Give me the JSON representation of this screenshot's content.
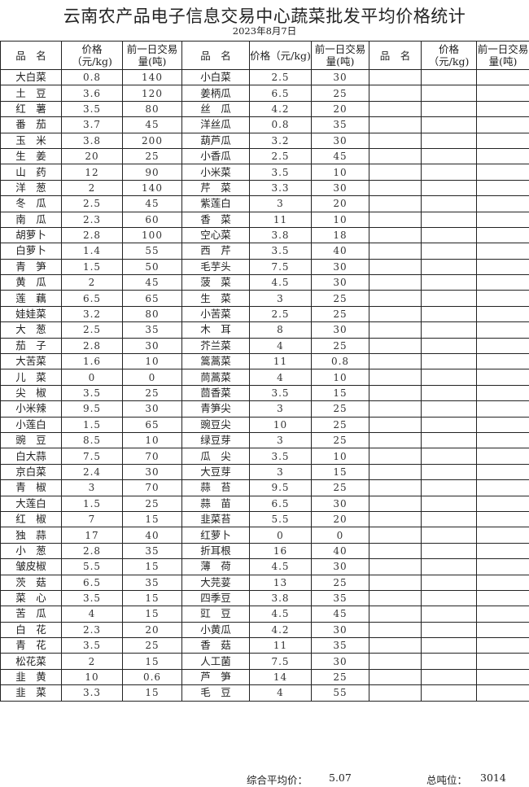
{
  "title": "云南农产品电子信息交易中心蔬菜批发平均价格统计",
  "date": "2023年8月7日",
  "headers": {
    "name": "品　名",
    "price": "价格（元/kg)",
    "volume": "前一日交易量(吨)"
  },
  "left": [
    [
      "大白菜",
      "0.8",
      "140"
    ],
    [
      "土　豆",
      "3.6",
      "120"
    ],
    [
      "红　薯",
      "3.5",
      "80"
    ],
    [
      "番　茄",
      "3.7",
      "45"
    ],
    [
      "玉　米",
      "3.8",
      "200"
    ],
    [
      "生　姜",
      "20",
      "25"
    ],
    [
      "山　药",
      "12",
      "90"
    ],
    [
      "洋　葱",
      "2",
      "140"
    ],
    [
      "冬　瓜",
      "2.5",
      "45"
    ],
    [
      "南　瓜",
      "2.3",
      "60"
    ],
    [
      "胡萝卜",
      "2.8",
      "100"
    ],
    [
      "白萝卜",
      "1.4",
      "55"
    ],
    [
      "青　笋",
      "1.5",
      "50"
    ],
    [
      "黄　瓜",
      "2",
      "45"
    ],
    [
      "莲　藕",
      "6.5",
      "65"
    ],
    [
      "娃娃菜",
      "3.2",
      "80"
    ],
    [
      "大　葱",
      "2.5",
      "35"
    ],
    [
      "茄　子",
      "2.8",
      "30"
    ],
    [
      "大苦菜",
      "1.6",
      "10"
    ],
    [
      "儿　菜",
      "0",
      "0"
    ],
    [
      "尖　椒",
      "3.5",
      "25"
    ],
    [
      "小米辣",
      "9.5",
      "30"
    ],
    [
      "小莲白",
      "1.5",
      "65"
    ],
    [
      "豌　豆",
      "8.5",
      "10"
    ],
    [
      "白大蒜",
      "7.5",
      "70"
    ],
    [
      "京白菜",
      "2.4",
      "30"
    ],
    [
      "青　椒",
      "3",
      "70"
    ],
    [
      "大莲白",
      "1.5",
      "25"
    ],
    [
      "红　椒",
      "7",
      "15"
    ],
    [
      "独　蒜",
      "17",
      "40"
    ],
    [
      "小　葱",
      "2.8",
      "35"
    ],
    [
      "皱皮椒",
      "5.5",
      "15"
    ],
    [
      "茨　菇",
      "6.5",
      "35"
    ],
    [
      "菜　心",
      "3.5",
      "15"
    ],
    [
      "苦　瓜",
      "4",
      "15"
    ],
    [
      "白　花",
      "2.3",
      "20"
    ],
    [
      "青　花",
      "3.5",
      "25"
    ],
    [
      "松花菜",
      "2",
      "15"
    ],
    [
      "韭　黄",
      "10",
      "0.6"
    ],
    [
      "韭　菜",
      "3.3",
      "15"
    ]
  ],
  "middle": [
    [
      "小白菜",
      "2.5",
      "30"
    ],
    [
      "姜柄瓜",
      "6.5",
      "25"
    ],
    [
      "丝　瓜",
      "4.2",
      "20"
    ],
    [
      "洋丝瓜",
      "0.8",
      "35"
    ],
    [
      "葫芦瓜",
      "3.2",
      "30"
    ],
    [
      "小香瓜",
      "2.5",
      "45"
    ],
    [
      "小米菜",
      "3.5",
      "10"
    ],
    [
      "芹　菜",
      "3.3",
      "30"
    ],
    [
      "紫莲白",
      "3",
      "20"
    ],
    [
      "香　菜",
      "11",
      "10"
    ],
    [
      "空心菜",
      "3.8",
      "18"
    ],
    [
      "西　芹",
      "3.5",
      "40"
    ],
    [
      "毛芋头",
      "7.5",
      "30"
    ],
    [
      "菠　菜",
      "4.5",
      "30"
    ],
    [
      "生　菜",
      "3",
      "25"
    ],
    [
      "小苦菜",
      "2.5",
      "25"
    ],
    [
      "木　耳",
      "8",
      "30"
    ],
    [
      "芥兰菜",
      "4",
      "25"
    ],
    [
      "篙蒿菜",
      "11",
      "0.8"
    ],
    [
      "茼蒿菜",
      "4",
      "10"
    ],
    [
      "茴香菜",
      "3.5",
      "15"
    ],
    [
      "青笋尖",
      "3",
      "25"
    ],
    [
      "豌豆尖",
      "10",
      "25"
    ],
    [
      "绿豆芽",
      "3",
      "25"
    ],
    [
      "瓜　尖",
      "3.5",
      "10"
    ],
    [
      "大豆芽",
      "3",
      "15"
    ],
    [
      "蒜　苔",
      "9.5",
      "25"
    ],
    [
      "蒜　苗",
      "6.5",
      "30"
    ],
    [
      "韭菜苔",
      "5.5",
      "20"
    ],
    [
      "红萝卜",
      "0",
      "0"
    ],
    [
      "折耳根",
      "16",
      "40"
    ],
    [
      "薄　荷",
      "4.5",
      "30"
    ],
    [
      "大芫荽",
      "13",
      "25"
    ],
    [
      "四季豆",
      "3.8",
      "35"
    ],
    [
      "豇　豆",
      "4.5",
      "45"
    ],
    [
      "小黄瓜",
      "4.2",
      "30"
    ],
    [
      "香　菇",
      "11",
      "35"
    ],
    [
      "人工菌",
      "7.5",
      "30"
    ],
    [
      "芦　笋",
      "14",
      "25"
    ],
    [
      "毛　豆",
      "4",
      "55"
    ]
  ],
  "footer": {
    "avg_label": "综合平均价：",
    "avg_value": "5.07",
    "total_label": "总吨位：",
    "total_value": "3014"
  }
}
